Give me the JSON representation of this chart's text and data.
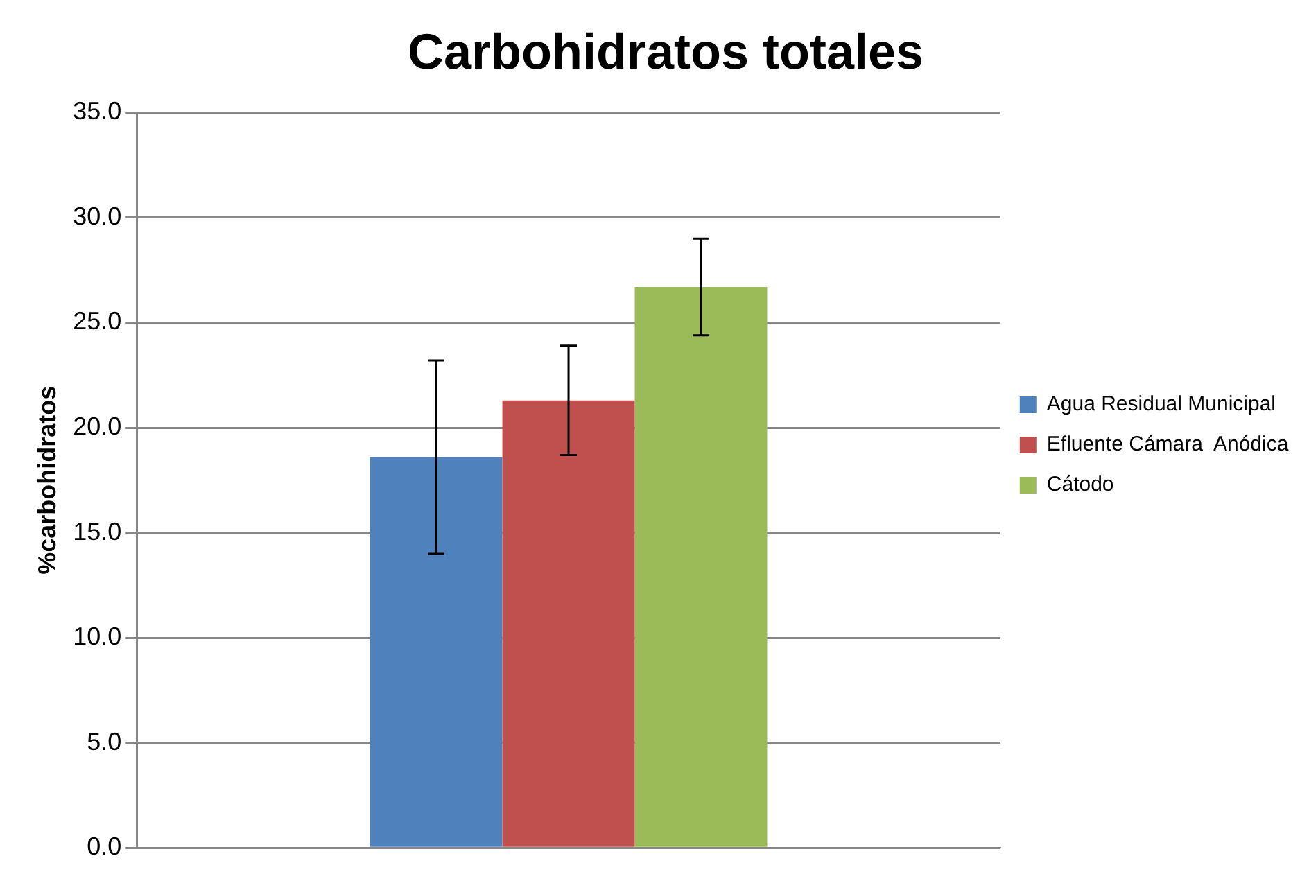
{
  "chart_data": {
    "type": "bar",
    "title": "Carbohidratos totales",
    "ylabel": "%carbohidratos",
    "categories": [
      null
    ],
    "series": [
      {
        "name": "Agua Residual Municipal",
        "color": "#4f81bd",
        "values": [
          18.6
        ],
        "errors": [
          4.6
        ]
      },
      {
        "name": "Efluente Cámara  Anódica",
        "color": "#c0504d",
        "values": [
          21.3
        ],
        "errors": [
          2.6
        ]
      },
      {
        "name": "Cátodo",
        "color": "#9bbb59",
        "values": [
          26.7
        ],
        "errors": [
          2.3
        ]
      }
    ],
    "ylim": [
      0,
      35
    ],
    "yticks": [
      {
        "value": 0,
        "label": "0.0"
      },
      {
        "value": 5,
        "label": "5.0"
      },
      {
        "value": 10,
        "label": "10.0"
      },
      {
        "value": 15,
        "label": "15.0"
      },
      {
        "value": 20,
        "label": "20.0"
      },
      {
        "value": 25,
        "label": "25.0"
      },
      {
        "value": 30,
        "label": "30.0"
      },
      {
        "value": 35,
        "label": "35.0"
      }
    ],
    "grid": "y",
    "legend": "right"
  }
}
